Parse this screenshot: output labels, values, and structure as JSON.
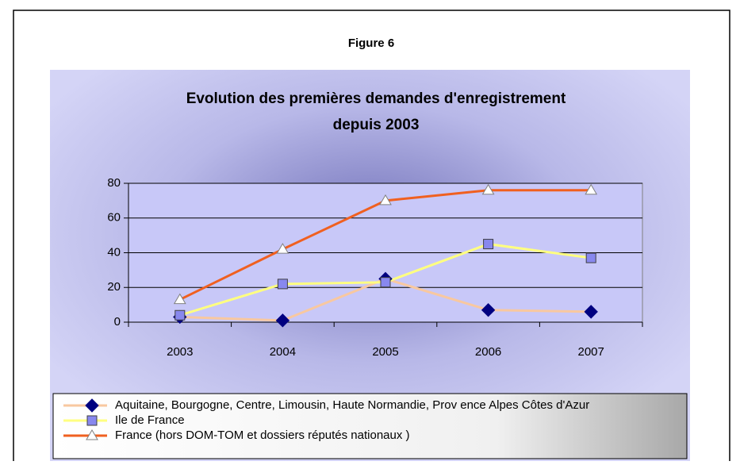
{
  "figure_label": "Figure 6",
  "chart_data": {
    "type": "line",
    "title": "Evolution des premières demandes d'enregistrement",
    "subtitle": "depuis 2003",
    "categories": [
      "2003",
      "2004",
      "2005",
      "2006",
      "2007"
    ],
    "series": [
      {
        "name": "Aquitaine, Bourgogne, Centre, Limousin, Haute Normandie, Prov ence Alpes Côtes d'Azur",
        "color": "#f8c8a0",
        "marker": "diamond",
        "marker_color": "#000080",
        "values": [
          3,
          1,
          25,
          7,
          6
        ]
      },
      {
        "name": "Ile de France",
        "color": "#ffff80",
        "marker": "square",
        "marker_color": "#8888ee",
        "values": [
          4,
          22,
          23,
          45,
          37
        ]
      },
      {
        "name": "France (hors DOM-TOM et dossiers réputés nationaux )",
        "color": "#f06020",
        "marker": "triangle",
        "marker_color": "#ffffff",
        "values": [
          13,
          42,
          70,
          76,
          76
        ]
      }
    ],
    "ylim": [
      0,
      80
    ],
    "yticks": [
      0,
      20,
      40,
      60,
      80
    ],
    "grid": true,
    "legend": "bottom"
  }
}
